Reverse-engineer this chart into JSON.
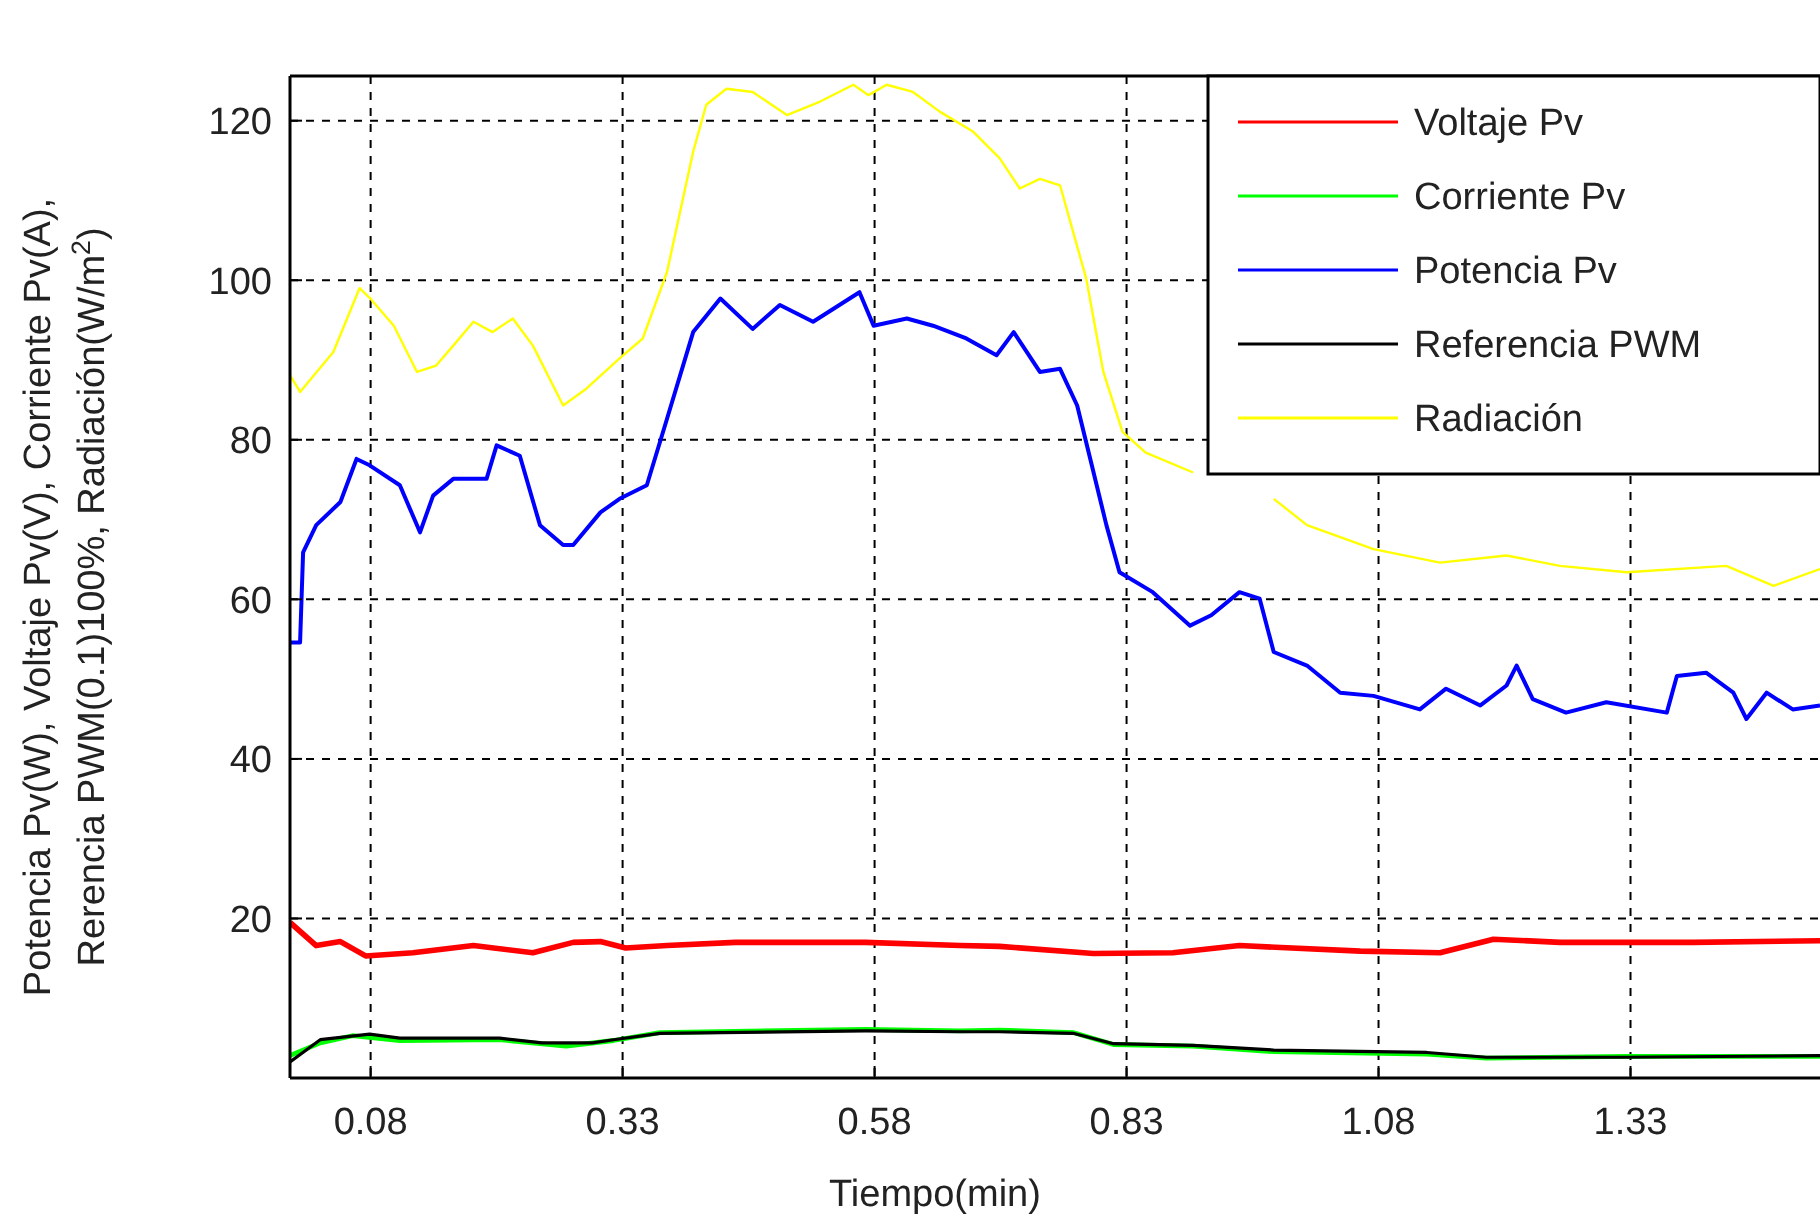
{
  "chart_data": {
    "type": "line",
    "xlabel": "Tiempo(min)",
    "ylabel": "Potencia Pv(W), Voltaje Pv(V), Corriente Pv(A),\nRerencia PWM(0.1)100%, Radiación(W/m$^{2}$)",
    "xlim": [
      0,
      1.518
    ],
    "ylim": [
      0,
      125.6
    ],
    "xticks": [
      0.08,
      0.33,
      0.58,
      0.83,
      1.08,
      1.33
    ],
    "yticks": [
      20,
      40,
      60,
      80,
      100,
      120
    ],
    "grid": true,
    "legend": "top right",
    "line_style": "solid",
    "marker": "none",
    "series": [
      {
        "name": "Voltaje Pv",
        "color": "#ff0000",
        "x": [
          0,
          0.026,
          0.05,
          0.075,
          0.122,
          0.182,
          0.241,
          0.281,
          0.308,
          0.333,
          0.374,
          0.442,
          0.571,
          0.665,
          0.704,
          0.797,
          0.876,
          0.942,
          1.062,
          1.141,
          1.194,
          1.26,
          1.392,
          1.518
        ],
        "values": [
          19.5,
          16.6,
          17.1,
          15.3,
          15.7,
          16.6,
          15.7,
          17,
          17.1,
          16.3,
          16.6,
          17,
          17,
          16.6,
          16.5,
          15.6,
          15.7,
          16.6,
          15.9,
          15.7,
          17.4,
          17,
          17,
          17.2
        ]
      },
      {
        "name": "Corriente Pv",
        "color": "#00ff00",
        "x": [
          0,
          0.03,
          0.062,
          0.109,
          0.208,
          0.274,
          0.321,
          0.367,
          0.571,
          0.665,
          0.704,
          0.777,
          0.817,
          0.896,
          0.976,
          1.128,
          1.187,
          1.325,
          1.518
        ],
        "values": [
          2.8,
          4.4,
          5.3,
          4.7,
          4.8,
          4,
          4.7,
          5.7,
          6.1,
          5.9,
          6,
          5.7,
          4.2,
          4,
          3.3,
          3,
          2.5,
          2.7,
          2.7
        ]
      },
      {
        "name": "Potencia Pv",
        "color": "#0000ff",
        "x": [
          0,
          0.01,
          0.013,
          0.026,
          0.05,
          0.066,
          0.079,
          0.109,
          0.129,
          0.142,
          0.162,
          0.195,
          0.205,
          0.228,
          0.248,
          0.271,
          0.281,
          0.308,
          0.327,
          0.354,
          0.374,
          0.4,
          0.427,
          0.459,
          0.486,
          0.519,
          0.565,
          0.579,
          0.612,
          0.638,
          0.671,
          0.701,
          0.718,
          0.744,
          0.764,
          0.781,
          0.794,
          0.81,
          0.823,
          0.856,
          0.893,
          0.914,
          0.942,
          0.962,
          0.976,
          1.009,
          1.042,
          1.075,
          1.121,
          1.147,
          1.181,
          1.207,
          1.217,
          1.233,
          1.266,
          1.306,
          1.366,
          1.376,
          1.405,
          1.432,
          1.445,
          1.465,
          1.491,
          1.518
        ],
        "values": [
          54.6,
          54.6,
          65.9,
          69.3,
          72.2,
          77.6,
          76.8,
          74.3,
          68.4,
          73,
          75.1,
          75.1,
          79.3,
          78,
          69.3,
          66.8,
          66.8,
          70.9,
          72.6,
          74.3,
          82.6,
          93.5,
          97.7,
          93.9,
          96.9,
          94.8,
          98.5,
          94.3,
          95.2,
          94.3,
          92.7,
          90.6,
          93.5,
          88.5,
          88.9,
          84.3,
          77.6,
          69.3,
          63.4,
          60.9,
          56.7,
          58,
          60.9,
          60.1,
          53.4,
          51.7,
          48.3,
          47.9,
          46.2,
          48.8,
          46.7,
          49.2,
          51.7,
          47.5,
          45.8,
          47.1,
          45.8,
          50.4,
          50.8,
          48.3,
          45,
          48.3,
          46.2,
          46.7
        ]
      },
      {
        "name": "Referencia PWM",
        "color": "#000000",
        "x": [
          0,
          0.03,
          0.079,
          0.109,
          0.208,
          0.25,
          0.3,
          0.321,
          0.367,
          0.571,
          0.665,
          0.704,
          0.777,
          0.817,
          0.896,
          0.976,
          1.128,
          1.187,
          1.325,
          1.518
        ],
        "values": [
          2,
          4.8,
          5.5,
          5,
          5,
          4.4,
          4.4,
          4.8,
          5.6,
          5.9,
          5.8,
          5.8,
          5.6,
          4.3,
          4.1,
          3.5,
          3.2,
          2.6,
          2.6,
          2.8
        ]
      },
      {
        "name": "Radiación",
        "color": "#ffff00",
        "x": [
          0,
          0.01,
          0.043,
          0.069,
          0.079,
          0.103,
          0.126,
          0.145,
          0.162,
          0.182,
          0.201,
          0.221,
          0.241,
          0.271,
          0.294,
          0.327,
          0.35,
          0.374,
          0.4,
          0.413,
          0.433,
          0.459,
          0.493,
          0.526,
          0.559,
          0.574,
          0.592,
          0.618,
          0.645,
          0.678,
          0.704,
          0.724,
          0.744,
          0.764,
          0.79,
          0.807,
          0.826,
          0.849,
          0.896,
          0.923,
          0.976,
          1.009,
          1.075,
          1.141,
          1.207,
          1.26,
          1.326,
          1.425,
          1.472,
          1.518
        ],
        "values": [
          88.1,
          86,
          91,
          99,
          97.8,
          94.3,
          88.5,
          89.3,
          91.8,
          94.8,
          93.5,
          95.2,
          91.8,
          84.3,
          86.4,
          90.2,
          92.7,
          101,
          116.1,
          122,
          124,
          123.6,
          120.7,
          122.4,
          124.5,
          123.2,
          124.5,
          123.6,
          121.1,
          118.6,
          115.3,
          111.5,
          112.7,
          111.9,
          100.2,
          88.5,
          81,
          78.4,
          75.9,
          null,
          72.6,
          69.3,
          66.3,
          64.6,
          65.5,
          64.2,
          63.4,
          64.2,
          61.7,
          63.8
        ]
      }
    ]
  }
}
